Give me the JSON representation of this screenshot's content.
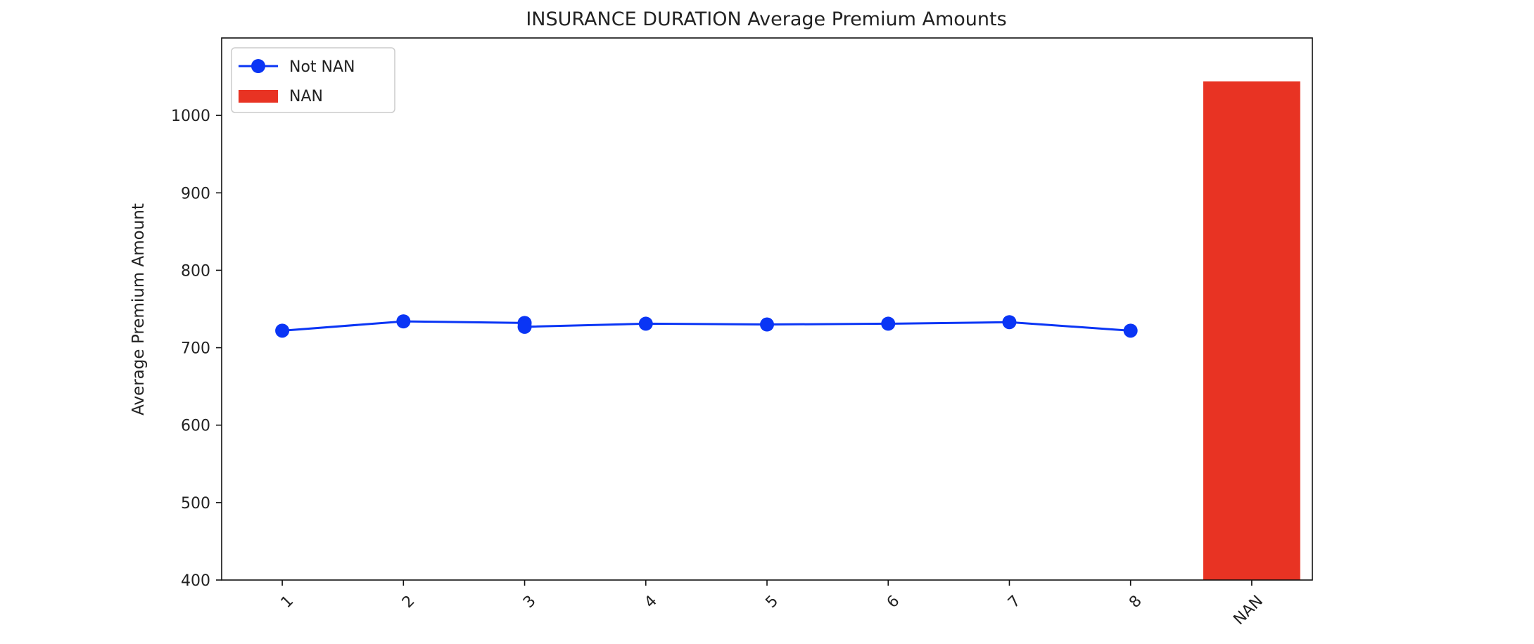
{
  "chart_data": {
    "type": "line",
    "title": "INSURANCE DURATION Average Premium Amounts",
    "xlabel": "",
    "ylabel": "Average Premium Amount",
    "categories": [
      "1",
      "2",
      "3",
      "4",
      "5",
      "6",
      "7",
      "8",
      "NAN"
    ],
    "ylim": [
      400,
      1100
    ],
    "yticks": [
      400,
      500,
      600,
      700,
      800,
      900,
      1000
    ],
    "x_tick_rotation": 45,
    "grid": false,
    "legend_position": "top-left",
    "series": [
      {
        "name": "Not NAN",
        "type": "line",
        "marker": "circle",
        "color": "#0a35f5",
        "points": [
          {
            "x": "1",
            "y": 722
          },
          {
            "x": "2",
            "y": 734
          },
          {
            "x": "3",
            "y": 732
          },
          {
            "x": "3",
            "y": 727
          },
          {
            "x": "4",
            "y": 731
          },
          {
            "x": "5",
            "y": 730
          },
          {
            "x": "6",
            "y": 731
          },
          {
            "x": "7",
            "y": 733
          },
          {
            "x": "8",
            "y": 722
          }
        ]
      },
      {
        "name": "NAN",
        "type": "bar",
        "color": "#e83323",
        "points": [
          {
            "x": "NAN",
            "y": 1044
          }
        ]
      }
    ]
  }
}
